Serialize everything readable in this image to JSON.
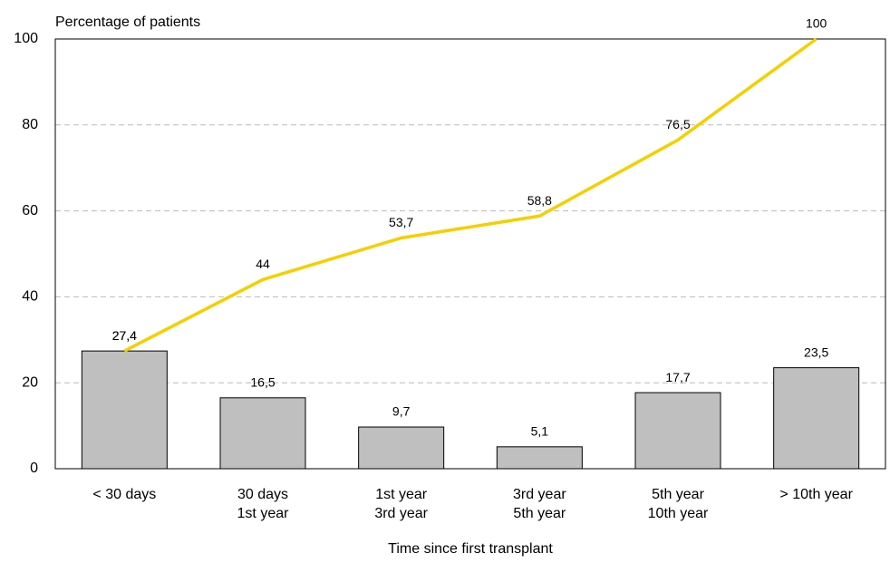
{
  "chart_data": {
    "type": "bar-line",
    "y_label": "Percentage of patients",
    "x_label": "Time since first transplant",
    "categories": [
      [
        "< 30 days"
      ],
      [
        "30 days",
        "1st year"
      ],
      [
        "1st year",
        "3rd year"
      ],
      [
        "3rd year",
        "5th year"
      ],
      [
        "5th year",
        "10th year"
      ],
      [
        "> 10th year"
      ]
    ],
    "ylim": [
      0,
      100
    ],
    "yticks": [
      0,
      20,
      40,
      60,
      80,
      100
    ],
    "grid": true,
    "series": [
      {
        "type": "bar",
        "color": "#bfbfbf",
        "values": [
          27.4,
          16.5,
          9.7,
          5.1,
          17.7,
          23.5
        ],
        "value_labels": [
          "27,4",
          "16,5",
          "9,7",
          "5,1",
          "17,7",
          "23,5"
        ]
      },
      {
        "type": "line",
        "color": "#f5d000",
        "values": [
          27.4,
          44,
          53.7,
          58.8,
          76.5,
          100
        ],
        "value_labels": [
          "27,4",
          "44",
          "53,7",
          "58,8",
          "76,5",
          "100"
        ]
      }
    ]
  }
}
